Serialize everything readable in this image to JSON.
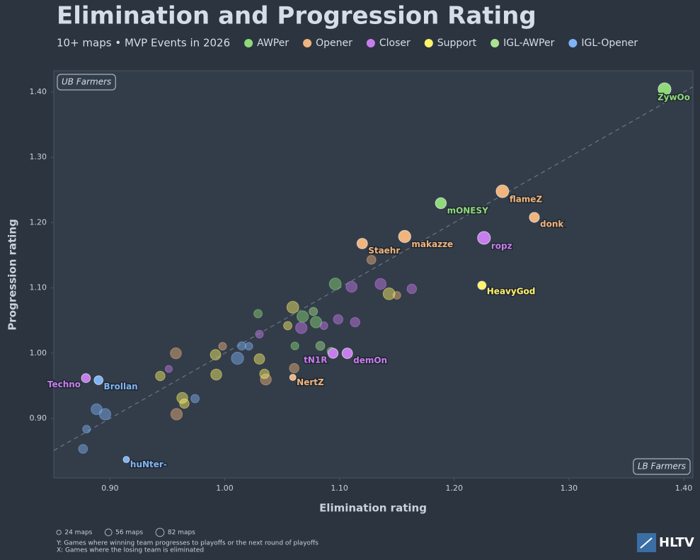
{
  "chart_data": {
    "type": "scatter",
    "title": "Elimination and Progression Rating",
    "subtitle": "10+ maps • MVP Events in 2026",
    "x_label": "Elimination rating",
    "y_label": "Progression rating",
    "xlim": [
      0.851,
      1.408
    ],
    "ylim": [
      0.809,
      1.4325
    ],
    "xticks": [
      {
        "value": 0.9,
        "label": "0.90"
      },
      {
        "value": 1.0,
        "label": "1.00"
      },
      {
        "value": 1.1,
        "label": "1.10"
      },
      {
        "value": 1.2,
        "label": "1.20"
      },
      {
        "value": 1.3,
        "label": "1.30"
      },
      {
        "value": 1.4,
        "label": "1.40"
      }
    ],
    "yticks": [
      {
        "value": 0.9,
        "label": "0.90"
      },
      {
        "value": 1.0,
        "label": "1.00"
      },
      {
        "value": 1.1,
        "label": "1.10"
      },
      {
        "value": 1.2,
        "label": "1.20"
      },
      {
        "value": 1.3,
        "label": "1.30"
      },
      {
        "value": 1.4,
        "label": "1.40"
      }
    ],
    "reference_line": "y=x",
    "series": [
      {
        "name": "AWPer",
        "color": "#8fd97a",
        "x": [
          1.3833,
          1.1883,
          1.0963,
          1.0679,
          1.0796,
          1.029,
          1.0611,
          1.0926
        ],
        "y": [
          1.4043,
          1.2297,
          1.106,
          1.0562,
          1.0475,
          1.0605,
          1.0111,
          1.0031
        ],
        "sizes": [
          82,
          60,
          70,
          65,
          65,
          35,
          30,
          30
        ],
        "labels": [
          "ZywOo",
          "mONESY",
          null,
          null,
          null,
          null,
          null,
          null
        ]
      },
      {
        "name": "Opener",
        "color": "#f0b47c",
        "x": [
          1.242,
          1.2698,
          1.1568,
          1.1198,
          1.0593,
          1.1278,
          1.15,
          0.9981,
          0.9574,
          1.0358,
          1.0605,
          0.958
        ],
        "y": [
          1.248,
          1.208,
          1.1787,
          1.1679,
          0.9629,
          1.143,
          1.0887,
          1.0106,
          0.9998,
          0.9597,
          0.977,
          0.9065
        ],
        "sizes": [
          80,
          50,
          75,
          55,
          20,
          40,
          30,
          30,
          60,
          60,
          45,
          65
        ],
        "labels": [
          "flameZ",
          "donk",
          "makazze",
          "Staehr",
          "NertZ",
          null,
          null,
          null,
          null,
          null,
          null,
          null
        ]
      },
      {
        "name": "Closer",
        "color": "#c77dee",
        "x": [
          1.2259,
          1.1068,
          1.0944,
          0.879,
          1.1105,
          1.1358,
          1.163,
          1.0667,
          1.0864,
          1.0988,
          1.1136,
          1.0302,
          0.9512
        ],
        "y": [
          1.1766,
          0.9998,
          0.9998,
          0.9618,
          1.1017,
          1.106,
          1.0985,
          1.0388,
          1.0421,
          1.0518,
          1.0475,
          1.0291,
          0.9759
        ],
        "sizes": [
          82,
          55,
          50,
          40,
          60,
          60,
          45,
          65,
          30,
          45,
          45,
          30,
          25
        ],
        "labels": [
          "ropz",
          "demOn",
          "tN1R",
          "Techno",
          null,
          null,
          null,
          null,
          null,
          null,
          null,
          null,
          null
        ]
      },
      {
        "name": "Support",
        "color": "#fff36b",
        "x": [
          1.2241,
          1.1432,
          1.0593,
          1.0549,
          1.0302,
          0.992,
          0.9926,
          0.9438,
          1.0346,
          0.963,
          0.9648
        ],
        "y": [
          1.1039,
          1.0909,
          1.0703,
          1.0421,
          0.9911,
          0.9976,
          0.9672,
          0.9651,
          0.9683,
          0.9315,
          0.9228
        ],
        "sizes": [
          35,
          70,
          70,
          35,
          55,
          55,
          60,
          45,
          45,
          60,
          45
        ],
        "labels": [
          "HeavyGod",
          null,
          null,
          null,
          null,
          null,
          null,
          null,
          null,
          null,
          null
        ]
      },
      {
        "name": "IGL-AWPer",
        "color": "#a9e391",
        "x": [
          1.0772,
          1.0833
        ],
        "y": [
          1.0638,
          1.0112
        ],
        "sizes": [
          35,
          40
        ],
        "labels": [
          null,
          null
        ]
      },
      {
        "name": "IGL-Opener",
        "color": "#7fb3f5",
        "x": [
          0.89,
          0.9142,
          1.0148,
          1.021,
          1.0111,
          0.9741,
          0.8883,
          0.8957,
          0.8796,
          0.8765
        ],
        "y": [
          0.9586,
          0.8371,
          1.0111,
          1.0106,
          0.9922,
          0.9304,
          0.9141,
          0.9065,
          0.8837,
          0.8534
        ],
        "sizes": [
          40,
          20,
          35,
          30,
          75,
          35,
          60,
          65,
          30,
          40
        ],
        "labels": [
          "Brollan",
          "huNter-",
          null,
          null,
          null,
          null,
          null,
          null,
          null,
          null
        ]
      }
    ],
    "annotations": [
      "UB Farmers",
      "LB Farmers"
    ],
    "size_legend": [
      {
        "value": 24,
        "label": "24 maps"
      },
      {
        "value": 56,
        "label": "56 maps"
      },
      {
        "value": 82,
        "label": "82 maps"
      }
    ],
    "notes": [
      "Y: Games where winning team progresses to playoffs or the next round of playoffs",
      "X: Games where the losing team is eliminated"
    ],
    "brand": "HLTV"
  }
}
